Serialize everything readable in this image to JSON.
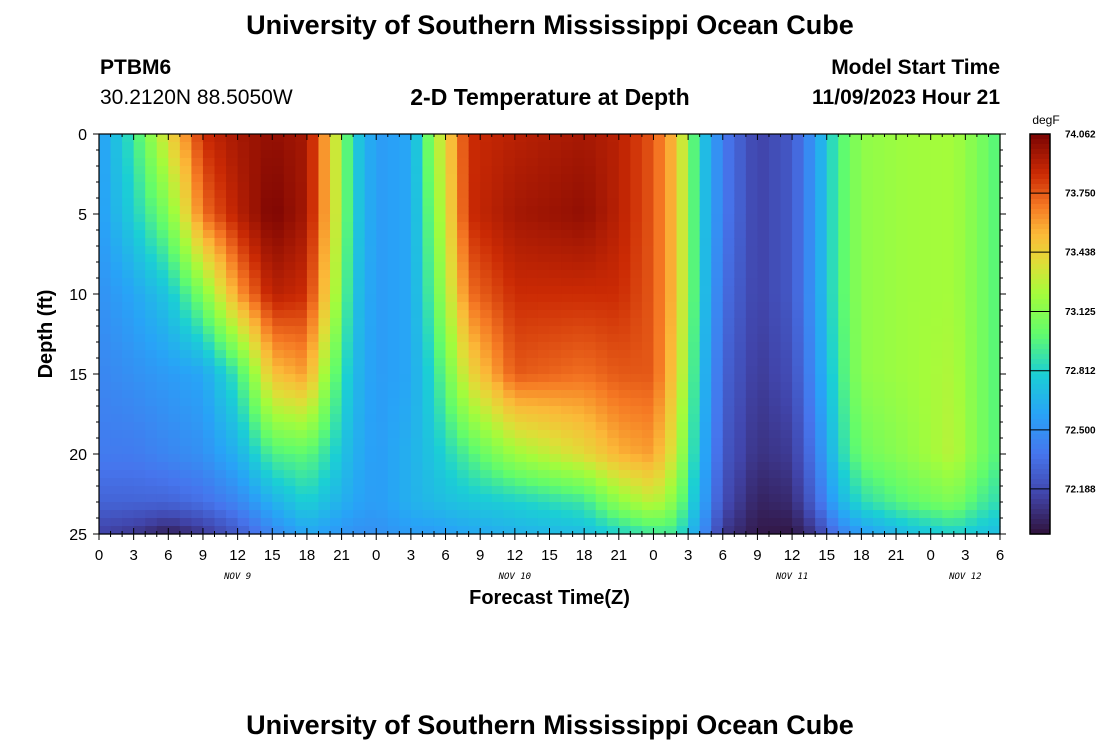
{
  "header": {
    "title": "University of Southern Mississippi Ocean Cube",
    "station": "PTBM6",
    "coords": "30.2120N  88.5050W",
    "plot_title": "2-D Temperature at Depth",
    "model_label": "Model Start Time",
    "model_time": "11/09/2023 Hour 21"
  },
  "footer": {
    "title": "University of Southern Mississippi Ocean Cube"
  },
  "colors": {
    "cold": "#30123b",
    "warm": "#7a0403",
    "mid": "#a4fc3b"
  },
  "chart_data": {
    "type": "heatmap",
    "title": "2-D Temperature at Depth",
    "xlabel": "Forecast Time(Z)",
    "ylabel": "Depth (ft)",
    "x_range_hours": [
      0,
      78
    ],
    "y_range_ft": [
      0,
      25
    ],
    "x_ticks": [
      "0",
      "3",
      "6",
      "9",
      "12",
      "15",
      "18",
      "21",
      "0",
      "3",
      "6",
      "9",
      "12",
      "15",
      "18",
      "21",
      "0",
      "3",
      "6",
      "9",
      "12",
      "15",
      "18",
      "21",
      "0",
      "3",
      "6"
    ],
    "date_labels": [
      {
        "label": "NOV 9",
        "hour": 12
      },
      {
        "label": "NOV 10",
        "hour": 36
      },
      {
        "label": "NOV 11",
        "hour": 60
      },
      {
        "label": "NOV 12",
        "hour": 75
      }
    ],
    "y_ticks": [
      0,
      5,
      10,
      15,
      20,
      25
    ],
    "colorbar": {
      "unit": "degF",
      "min": 71.95,
      "max": 74.062,
      "ticks": [
        "74.062",
        "73.750",
        "73.438",
        "73.125",
        "72.812",
        "72.500",
        "72.188"
      ]
    },
    "depths_ft": [
      0,
      5,
      10,
      15,
      20,
      23,
      25
    ],
    "temperature_profiles": [
      {
        "hour": 0,
        "t": [
          72.55,
          72.55,
          72.5,
          72.45,
          72.4,
          72.3,
          72.15
        ]
      },
      {
        "hour": 3,
        "t": [
          72.9,
          72.8,
          72.6,
          72.5,
          72.4,
          72.3,
          72.1
        ]
      },
      {
        "hour": 6,
        "t": [
          73.4,
          73.1,
          72.75,
          72.55,
          72.45,
          72.3,
          72.0
        ]
      },
      {
        "hour": 9,
        "t": [
          73.85,
          73.7,
          73.1,
          72.6,
          72.5,
          72.35,
          72.1
        ]
      },
      {
        "hour": 12,
        "t": [
          73.95,
          73.9,
          73.6,
          72.9,
          72.65,
          72.45,
          72.25
        ]
      },
      {
        "hour": 15,
        "t": [
          74.0,
          74.06,
          73.9,
          73.5,
          72.95,
          72.65,
          72.45
        ]
      },
      {
        "hour": 18,
        "t": [
          73.95,
          73.95,
          73.85,
          73.6,
          73.0,
          72.8,
          72.6
        ]
      },
      {
        "hour": 20,
        "t": [
          73.5,
          73.5,
          73.4,
          73.1,
          72.85,
          72.7,
          72.55
        ]
      },
      {
        "hour": 22,
        "t": [
          72.8,
          72.8,
          72.75,
          72.7,
          72.65,
          72.6,
          72.5
        ]
      },
      {
        "hour": 24,
        "t": [
          72.55,
          72.55,
          72.55,
          72.55,
          72.55,
          72.55,
          72.5
        ]
      },
      {
        "hour": 27,
        "t": [
          72.6,
          72.6,
          72.6,
          72.6,
          72.65,
          72.65,
          72.55
        ]
      },
      {
        "hour": 29,
        "t": [
          73.2,
          73.1,
          73.0,
          72.85,
          72.75,
          72.7,
          72.55
        ]
      },
      {
        "hour": 32,
        "t": [
          73.85,
          73.85,
          73.7,
          73.4,
          72.95,
          72.75,
          72.6
        ]
      },
      {
        "hour": 36,
        "t": [
          73.9,
          73.95,
          73.85,
          73.75,
          73.2,
          72.8,
          72.65
        ]
      },
      {
        "hour": 42,
        "t": [
          73.95,
          74.0,
          73.85,
          73.7,
          73.4,
          72.9,
          72.7
        ]
      },
      {
        "hour": 45,
        "t": [
          73.9,
          73.9,
          73.85,
          73.75,
          73.55,
          73.15,
          72.8
        ]
      },
      {
        "hour": 48,
        "t": [
          73.75,
          73.75,
          73.75,
          73.75,
          73.6,
          73.3,
          72.9
        ]
      },
      {
        "hour": 50,
        "t": [
          73.5,
          73.5,
          73.5,
          73.45,
          73.3,
          73.1,
          72.9
        ]
      },
      {
        "hour": 52,
        "t": [
          72.8,
          72.8,
          72.8,
          72.75,
          72.7,
          72.65,
          72.55
        ]
      },
      {
        "hour": 54,
        "t": [
          72.4,
          72.4,
          72.35,
          72.3,
          72.25,
          72.2,
          72.1
        ]
      },
      {
        "hour": 57,
        "t": [
          72.15,
          72.15,
          72.15,
          72.12,
          72.08,
          72.02,
          71.98
        ]
      },
      {
        "hour": 60,
        "t": [
          72.25,
          72.25,
          72.25,
          72.2,
          72.12,
          72.05,
          71.97
        ]
      },
      {
        "hour": 62,
        "t": [
          72.55,
          72.55,
          72.55,
          72.5,
          72.4,
          72.3,
          72.1
        ]
      },
      {
        "hour": 64,
        "t": [
          72.95,
          72.95,
          72.95,
          72.9,
          72.8,
          72.65,
          72.4
        ]
      },
      {
        "hour": 66,
        "t": [
          73.15,
          73.15,
          73.15,
          73.15,
          73.05,
          72.85,
          72.55
        ]
      },
      {
        "hour": 70,
        "t": [
          73.2,
          73.2,
          73.2,
          73.2,
          73.15,
          73.0,
          72.7
        ]
      },
      {
        "hour": 74,
        "t": [
          73.22,
          73.22,
          73.22,
          73.25,
          73.28,
          73.1,
          72.8
        ]
      },
      {
        "hour": 76,
        "t": [
          73.1,
          73.1,
          73.1,
          73.1,
          73.1,
          72.95,
          72.75
        ]
      },
      {
        "hour": 78,
        "t": [
          72.95,
          72.95,
          72.95,
          72.95,
          72.95,
          72.85,
          72.7
        ]
      }
    ]
  }
}
